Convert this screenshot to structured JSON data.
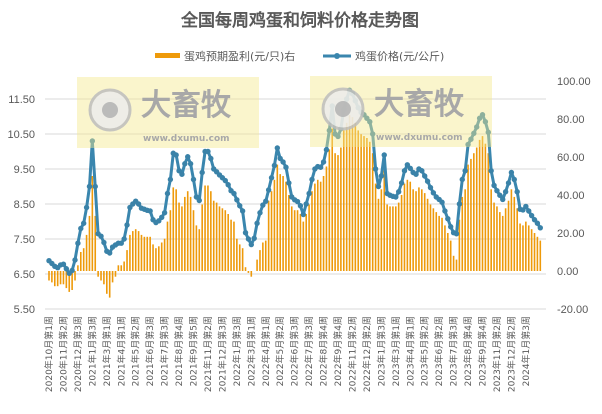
{
  "chart_data": {
    "type": "bar+line",
    "title": "全国每周鸡蛋和饲料价格走势图",
    "watermark": {
      "logo_text": "大畜牧",
      "url_text": "www.dxumu.com"
    },
    "colors": {
      "bars": "#EE9A0A",
      "line": "#3A86AE",
      "watermark": "#F4E88F"
    },
    "grid": true,
    "legend_position": "top",
    "y_left": {
      "range": [
        5.5,
        12.5
      ],
      "ticks": [
        "11.50",
        "10.50",
        "9.50",
        "8.50",
        "7.50",
        "6.50",
        "5.50"
      ],
      "tick_values": [
        11.5,
        10.5,
        9.5,
        8.5,
        7.5,
        6.5,
        5.5
      ]
    },
    "y_right": {
      "range": [
        -20,
        100
      ],
      "ticks": [
        "100.00",
        "80.00",
        "60.00",
        "40.00",
        "20.00",
        "0.00",
        "-20.00"
      ],
      "tick_values": [
        100,
        80,
        60,
        40,
        20,
        0,
        -20
      ]
    },
    "x_tick_labels": [
      "2020年10月第1周",
      "2020年11月第2周",
      "2020年12月第3周",
      "2021年1月第3周",
      "2021年3月第1周",
      "2021年4月第1周",
      "2021年5月第2周",
      "2021年6月第3周",
      "2021年7月第3周",
      "2021年8月第4周",
      "2021年9月第5周",
      "2021年11月第2周",
      "2021年12月第3周",
      "2022年1月第3周",
      "2022年3月第1周",
      "2022年4月第1周",
      "2022年5月第2周",
      "2022年6月第3周",
      "2022年7月第3周",
      "2022年8月第4周",
      "2022年9月第4周",
      "2022年11月第2周",
      "2022年12月第2周",
      "2023年1月第3周",
      "2023年3月第1周",
      "2023年4月第1周",
      "2023年5月第2周",
      "2023年6月第2周",
      "2023年7月第3周",
      "2023年8月第4周",
      "2023年9月第4周",
      "2023年11月第2周",
      "2023年12月第2周",
      "2024年1月第3周"
    ],
    "series": [
      {
        "name": "蛋鸡预期盈利(元/只)右",
        "type": "bar",
        "axis": "right",
        "values": [
          -5,
          -6,
          -8,
          -8,
          -7,
          -7,
          -9,
          -11,
          -10,
          -5,
          3,
          10,
          12,
          19,
          29,
          50,
          29,
          -3,
          -5,
          -7,
          -12,
          -14,
          -6,
          -3,
          3,
          3,
          5,
          11,
          19,
          21,
          22,
          21,
          19,
          18,
          18,
          18,
          14,
          12,
          13,
          15,
          17,
          26,
          32,
          44,
          43,
          36,
          34,
          39,
          42,
          39,
          32,
          24,
          22,
          35,
          45,
          45,
          42,
          37,
          36,
          34,
          33,
          32,
          30,
          27,
          26,
          17,
          14,
          12,
          2,
          -1,
          -3,
          0,
          6,
          11,
          15,
          16,
          37,
          42,
          48,
          56,
          51,
          50,
          47,
          40,
          34,
          32,
          32,
          30,
          26,
          30,
          35,
          42,
          46,
          48,
          47,
          50,
          55,
          64,
          75,
          62,
          61,
          65,
          74,
          78,
          82,
          81,
          78,
          74,
          72,
          71,
          70,
          68,
          62,
          46,
          38,
          43,
          53,
          35,
          34,
          34,
          34,
          36,
          40,
          46,
          48,
          47,
          43,
          42,
          44,
          43,
          41,
          38,
          35,
          33,
          31,
          29,
          28,
          24,
          20,
          16,
          8,
          6,
          27,
          39,
          43,
          56,
          59,
          62,
          65,
          69,
          71,
          67,
          62,
          43,
          36,
          34,
          31,
          29,
          33,
          37,
          43,
          39,
          33,
          25,
          24,
          26,
          24,
          22,
          20,
          18,
          16
        ]
      },
      {
        "name": "鸡蛋价格(元/公斤)",
        "type": "line",
        "axis": "left",
        "values": [
          6.88,
          6.8,
          6.72,
          6.68,
          6.76,
          6.78,
          6.65,
          6.52,
          6.6,
          6.9,
          7.38,
          7.8,
          7.95,
          8.4,
          9.0,
          10.3,
          9.0,
          7.65,
          7.58,
          7.4,
          7.15,
          7.1,
          7.27,
          7.33,
          7.38,
          7.38,
          7.5,
          7.9,
          8.4,
          8.5,
          8.58,
          8.5,
          8.38,
          8.35,
          8.32,
          8.3,
          8.05,
          7.97,
          8.02,
          8.12,
          8.25,
          8.8,
          9.2,
          9.95,
          9.9,
          9.45,
          9.35,
          9.65,
          9.85,
          9.65,
          9.2,
          8.7,
          8.6,
          9.4,
          10.0,
          10.0,
          9.8,
          9.5,
          9.42,
          9.33,
          9.25,
          9.17,
          9.05,
          8.88,
          8.8,
          8.62,
          8.45,
          8.3,
          7.68,
          7.5,
          7.34,
          7.52,
          7.95,
          8.25,
          8.47,
          8.58,
          8.9,
          9.25,
          9.6,
          10.1,
          9.8,
          9.7,
          9.55,
          9.1,
          8.7,
          8.62,
          8.57,
          8.45,
          8.2,
          8.5,
          8.8,
          9.2,
          9.5,
          9.57,
          9.55,
          9.7,
          10.05,
          10.6,
          11.3,
          10.5,
          10.43,
          10.65,
          11.2,
          11.5,
          11.75,
          11.65,
          11.45,
          11.25,
          11.12,
          11.05,
          10.95,
          10.85,
          10.5,
          9.5,
          9.0,
          9.3,
          9.9,
          8.8,
          8.75,
          8.72,
          8.7,
          8.85,
          9.1,
          9.45,
          9.62,
          9.52,
          9.4,
          9.35,
          9.5,
          9.45,
          9.3,
          9.15,
          8.97,
          8.82,
          8.7,
          8.63,
          8.55,
          8.3,
          8.08,
          7.85,
          7.68,
          7.65,
          8.5,
          9.2,
          9.45,
          10.2,
          10.35,
          10.52,
          10.7,
          10.95,
          11.05,
          10.85,
          10.55,
          9.45,
          9.03,
          8.88,
          8.75,
          8.63,
          8.85,
          9.1,
          9.4,
          9.2,
          8.85,
          8.35,
          8.33,
          8.43,
          8.3,
          8.17,
          8.05,
          7.95,
          7.82
        ]
      }
    ]
  }
}
